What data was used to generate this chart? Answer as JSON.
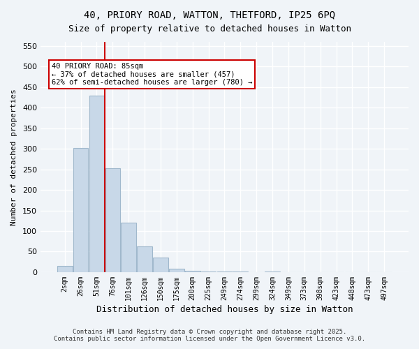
{
  "title_line1": "40, PRIORY ROAD, WATTON, THETFORD, IP25 6PQ",
  "title_line2": "Size of property relative to detached houses in Watton",
  "xlabel": "Distribution of detached houses by size in Watton",
  "ylabel": "Number of detached properties",
  "bar_color": "#c8d8e8",
  "bar_edge_color": "#a0b8cc",
  "background_color": "#f0f4f8",
  "grid_color": "#ffffff",
  "categories": [
    "2sqm",
    "26sqm",
    "51sqm",
    "76sqm",
    "101sqm",
    "126sqm",
    "150sqm",
    "175sqm",
    "200sqm",
    "225sqm",
    "249sqm",
    "274sqm",
    "299sqm",
    "324sqm",
    "349sqm",
    "373sqm",
    "398sqm",
    "423sqm",
    "448sqm",
    "473sqm",
    "497sqm"
  ],
  "values": [
    15,
    302,
    430,
    252,
    120,
    62,
    35,
    8,
    3,
    2,
    1,
    1,
    0,
    1,
    0,
    0,
    0,
    0,
    0,
    0,
    0
  ],
  "ylim": [
    0,
    560
  ],
  "yticks": [
    0,
    50,
    100,
    150,
    200,
    250,
    300,
    350,
    400,
    450,
    500,
    550
  ],
  "property_size": 85,
  "property_bin_index": 2,
  "annotation_text": "40 PRIORY ROAD: 85sqm\n← 37% of detached houses are smaller (457)\n62% of semi-detached houses are larger (780) →",
  "annotation_box_color": "#ffffff",
  "annotation_border_color": "#cc0000",
  "vline_color": "#cc0000",
  "vline_x": 2.5,
  "footer_line1": "Contains HM Land Registry data © Crown copyright and database right 2025.",
  "footer_line2": "Contains public sector information licensed under the Open Government Licence v3.0."
}
